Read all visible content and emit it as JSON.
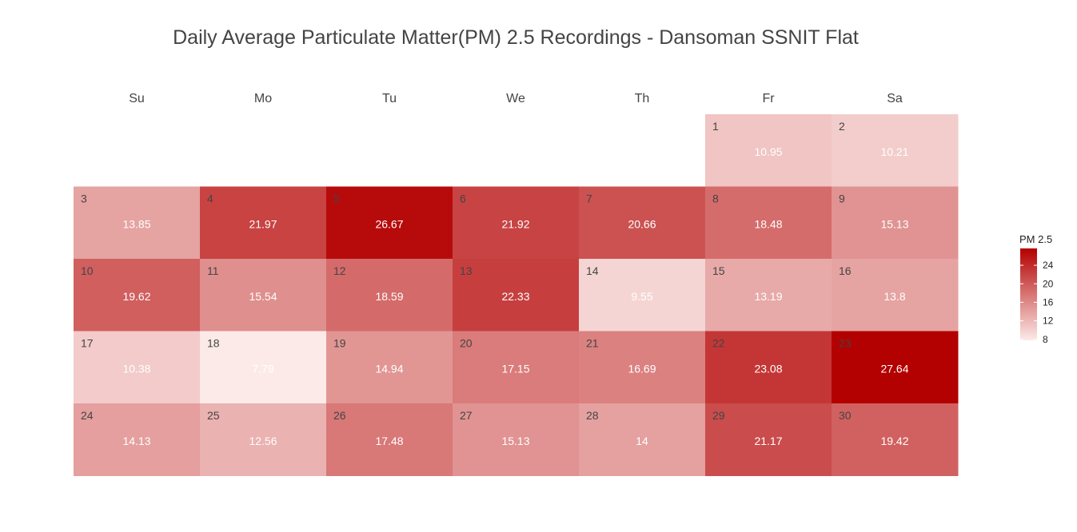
{
  "chart_data": {
    "type": "heatmap",
    "title": "Daily Average Particulate Matter(PM) 2.5 Recordings - Dansoman SSNIT Flat",
    "weekdays": [
      "Su",
      "Mo",
      "Tu",
      "We",
      "Th",
      "Fr",
      "Sa"
    ],
    "first_weekday_index": 5,
    "days": [
      {
        "day": 1,
        "value": 10.95
      },
      {
        "day": 2,
        "value": 10.21
      },
      {
        "day": 3,
        "value": 13.85
      },
      {
        "day": 4,
        "value": 21.97
      },
      {
        "day": 5,
        "value": 26.67
      },
      {
        "day": 6,
        "value": 21.92
      },
      {
        "day": 7,
        "value": 20.66
      },
      {
        "day": 8,
        "value": 18.48
      },
      {
        "day": 9,
        "value": 15.13
      },
      {
        "day": 10,
        "value": 19.62
      },
      {
        "day": 11,
        "value": 15.54
      },
      {
        "day": 12,
        "value": 18.59
      },
      {
        "day": 13,
        "value": 22.33
      },
      {
        "day": 14,
        "value": 9.55
      },
      {
        "day": 15,
        "value": 13.19
      },
      {
        "day": 16,
        "value": 13.8
      },
      {
        "day": 17,
        "value": 10.38
      },
      {
        "day": 18,
        "value": 7.79
      },
      {
        "day": 19,
        "value": 14.94
      },
      {
        "day": 20,
        "value": 17.15
      },
      {
        "day": 21,
        "value": 16.69
      },
      {
        "day": 22,
        "value": 23.08
      },
      {
        "day": 23,
        "value": 27.64
      },
      {
        "day": 24,
        "value": 14.13
      },
      {
        "day": 25,
        "value": 12.56
      },
      {
        "day": 26,
        "value": 17.48
      },
      {
        "day": 27,
        "value": 15.13
      },
      {
        "day": 28,
        "value": 14
      },
      {
        "day": 29,
        "value": 21.17
      },
      {
        "day": 30,
        "value": 19.42
      }
    ],
    "colorscale": {
      "title": "PM 2.5",
      "min": 7.79,
      "max": 27.64,
      "low_color": "#fbeae8",
      "high_color": "#b30000",
      "ticks": [
        8,
        12,
        16,
        20,
        24
      ]
    },
    "legend_position": "right",
    "grid": false
  }
}
